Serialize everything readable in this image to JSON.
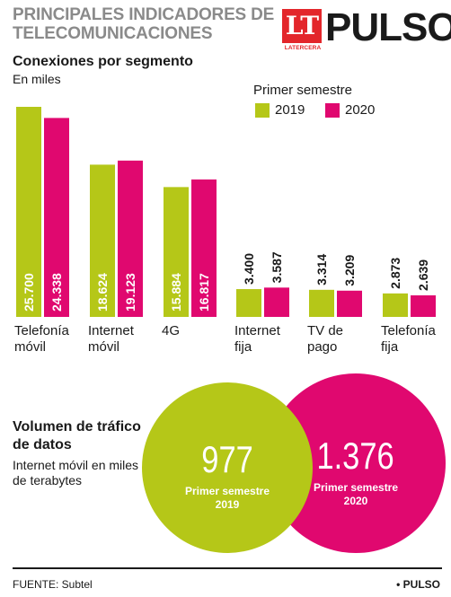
{
  "header": {
    "title": "PRINCIPALES INDICADORES DE TELECOMUNICACIONES",
    "logo_mark": "LT",
    "logo_sub": "LATERCERA",
    "brand": "PULSO"
  },
  "chart_data": [
    {
      "type": "bar",
      "title": "Conexiones por segmento",
      "subtitle": "En miles",
      "legend_title": "Primer semestre",
      "legend_position": "top-right",
      "categories": [
        "Telefonía móvil",
        "Internet móvil",
        "4G",
        "Internet fija",
        "TV de pago",
        "Telefonía fija"
      ],
      "series": [
        {
          "name": "2019",
          "color": "#b5c718",
          "values": [
            25700,
            18624,
            15884,
            3400,
            3314,
            2873
          ],
          "labels": [
            "25.700",
            "18.624",
            "15.884",
            "3.400",
            "3.314",
            "2.873"
          ]
        },
        {
          "name": "2020",
          "color": "#e0086f",
          "values": [
            24338,
            19123,
            16817,
            3587,
            3209,
            2639
          ],
          "labels": [
            "24.338",
            "19.123",
            "16.817",
            "3.587",
            "3.209",
            "2.639"
          ]
        }
      ],
      "ylim": [
        0,
        25700
      ],
      "grid": false
    },
    {
      "type": "bubble",
      "title": "Volumen de tráfico de datos",
      "subtitle": "Internet móvil en miles de terabytes",
      "items": [
        {
          "value": 977,
          "label": "977",
          "caption": "Primer semestre 2019",
          "color": "#b5c718"
        },
        {
          "value": 1376,
          "label": "1.376",
          "caption": "Primer semestre 2020",
          "color": "#e0086f"
        }
      ]
    }
  ],
  "categories_display": [
    [
      "Telefonía",
      "móvil"
    ],
    [
      "Internet",
      "móvil"
    ],
    [
      "4G"
    ],
    [
      "Internet",
      "fija"
    ],
    [
      "TV de",
      "pago"
    ],
    [
      "Telefonía",
      "fija"
    ]
  ],
  "captions": {
    "c2019_line1": "Primer semestre",
    "c2019_line2": "2019",
    "c2020_line1": "Primer semestre",
    "c2020_line2": "2020"
  },
  "footer": {
    "source": "FUENTE: Subtel",
    "credit": "• PULSO"
  }
}
